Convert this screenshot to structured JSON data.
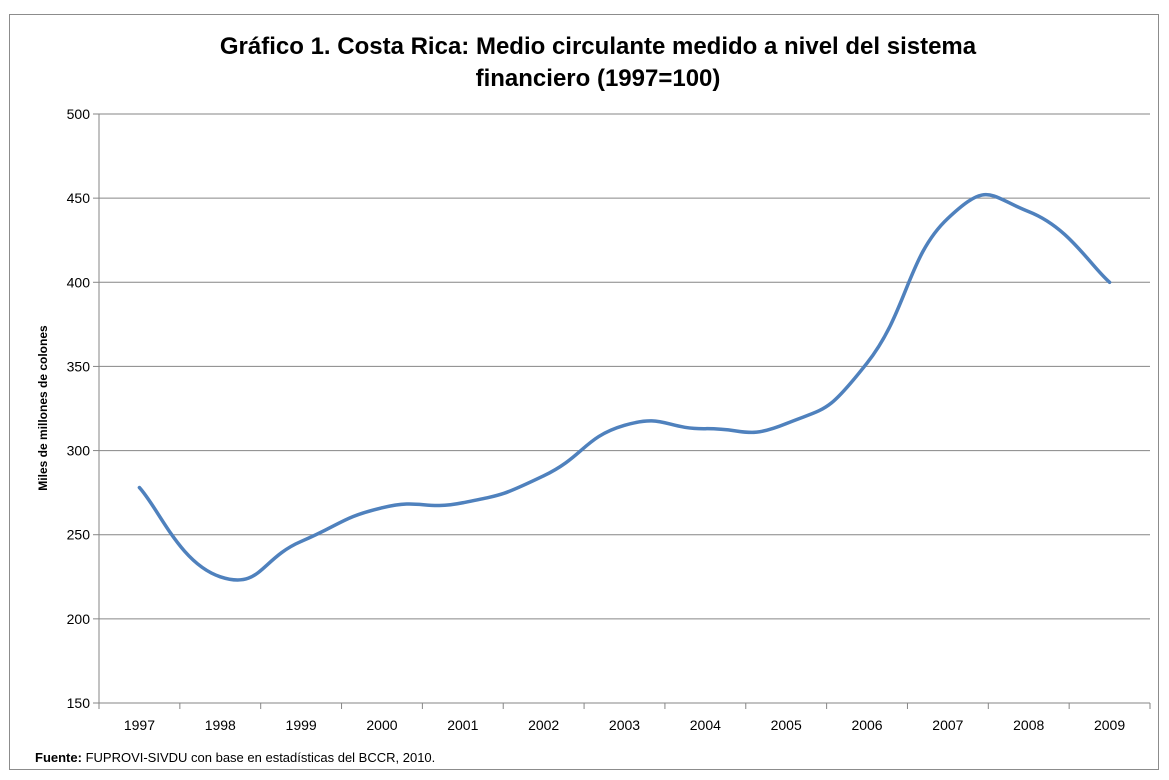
{
  "chart_data": {
    "type": "line",
    "title_lines": [
      "Gráfico 1. Costa Rica: Medio circulante medido a nivel del sistema",
      "financiero (1997=100)"
    ],
    "xlabel": "",
    "ylabel": "Miles de millones de colones",
    "ylim": [
      150,
      500
    ],
    "yticks": [
      150,
      200,
      250,
      300,
      350,
      400,
      450,
      500
    ],
    "categories": [
      "1997",
      "1998",
      "1999",
      "2000",
      "2001",
      "2002",
      "2003",
      "2004",
      "2005",
      "2006",
      "2007",
      "2008",
      "2009"
    ],
    "series": [
      {
        "values": [
          278,
          225,
          246,
          266,
          269,
          285,
          315,
          313,
          316,
          352,
          438,
          442,
          400
        ],
        "color": "#4f81bd"
      }
    ],
    "grid": "horizontal",
    "legend": "none"
  },
  "source": {
    "label": "Fuente:",
    "text": " FUPROVI-SIVDU con base en estadísticas del BCCR, 2010."
  }
}
